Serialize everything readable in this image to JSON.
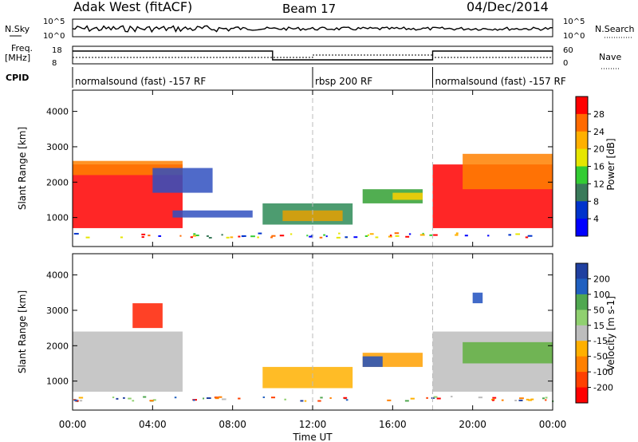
{
  "header": {
    "site": "Adak West (fitACF)",
    "beam": "Beam 17",
    "date": "04/Dec/2014"
  },
  "status_panel": {
    "nsky_label": "N.Sky",
    "nsky_ticks": [
      "10^5",
      "10^0"
    ],
    "nsearch_label": "N.Search",
    "nsearch_ticks": [
      "10^5",
      "10^0"
    ],
    "freq_label_1": "Freq.",
    "freq_label_2": "[MHz]",
    "freq_ticks": [
      "18",
      "8"
    ],
    "nave_label": "Nave",
    "nave_ticks": [
      "60",
      "0"
    ],
    "cpid_label": "CPID",
    "cpid_segments": [
      {
        "label": "normalsound (fast) -157 RF",
        "start_hour": 0,
        "end_hour": 12
      },
      {
        "label": "rbsp 200 RF",
        "start_hour": 12,
        "end_hour": 18
      },
      {
        "label": "normalsound (fast) -157 RF",
        "start_hour": 18,
        "end_hour": 24
      }
    ]
  },
  "x_axis": {
    "label": "Time UT",
    "ticks": [
      "00:00",
      "04:00",
      "08:00",
      "12:00",
      "16:00",
      "20:00",
      "00:00"
    ]
  },
  "chart_data": [
    {
      "type": "heatmap",
      "panel": "power",
      "ylabel": "Slant Range [km]",
      "xlim_hours": [
        0,
        24
      ],
      "ylim_km": [
        180,
        4600
      ],
      "ytick_labels": [
        "1000",
        "2000",
        "3000",
        "4000"
      ],
      "colorbar_label": "Power [dB]",
      "colorbar_ticks": [
        "28",
        "24",
        "20",
        "16",
        "12",
        "8",
        "4"
      ],
      "colorbar_colors": [
        "#ff0000",
        "#ff6a00",
        "#ffb000",
        "#e6e600",
        "#33cc33",
        "#3a7a5a",
        "#0033cc",
        "#0000ff"
      ],
      "regions": [
        {
          "t0": 0.0,
          "t1": 5.5,
          "r0": 700,
          "r1": 2500,
          "color": "#ff0000"
        },
        {
          "t0": 0.0,
          "t1": 5.5,
          "r0": 2200,
          "r1": 2600,
          "color": "#ff8000"
        },
        {
          "t0": 4.0,
          "t1": 7.0,
          "r0": 1700,
          "r1": 2400,
          "color": "#3050c0"
        },
        {
          "t0": 5.0,
          "t1": 9.0,
          "r0": 1000,
          "r1": 1200,
          "color": "#3050c0"
        },
        {
          "t0": 9.5,
          "t1": 14.0,
          "r0": 800,
          "r1": 1400,
          "color": "#2e8b57"
        },
        {
          "t0": 10.5,
          "t1": 13.5,
          "r0": 900,
          "r1": 1200,
          "color": "#e6a000"
        },
        {
          "t0": 14.5,
          "t1": 17.5,
          "r0": 1400,
          "r1": 1800,
          "color": "#33a033"
        },
        {
          "t0": 16.0,
          "t1": 17.5,
          "r0": 1500,
          "r1": 1700,
          "color": "#ffd000"
        },
        {
          "t0": 18.0,
          "t1": 24.0,
          "r0": 700,
          "r1": 2500,
          "color": "#ff0000"
        },
        {
          "t0": 19.5,
          "t1": 24.0,
          "r0": 1800,
          "r1": 2800,
          "color": "#ff8000"
        }
      ]
    },
    {
      "type": "heatmap",
      "panel": "velocity",
      "ylabel": "Slant Range [km]",
      "xlim_hours": [
        0,
        24
      ],
      "ylim_km": [
        180,
        4600
      ],
      "ytick_labels": [
        "1000",
        "2000",
        "3000",
        "4000"
      ],
      "colorbar_label": "Velocity [m s-1]",
      "colorbar_ticks": [
        "200",
        "100",
        "50",
        "15",
        "-15",
        "-50",
        "-100",
        "-200"
      ],
      "colorbar_colors": [
        "#2040a0",
        "#2060c0",
        "#50a850",
        "#90d070",
        "#bdbdbd",
        "#ffb000",
        "#ff8000",
        "#ff4000",
        "#ff0000"
      ],
      "regions": [
        {
          "t0": 0.0,
          "t1": 5.5,
          "r0": 700,
          "r1": 2400,
          "color": "#bdbdbd"
        },
        {
          "t0": 3.0,
          "t1": 4.5,
          "r0": 2500,
          "r1": 3200,
          "color": "#ff2000"
        },
        {
          "t0": 9.5,
          "t1": 14.0,
          "r0": 800,
          "r1": 1400,
          "color": "#ffb000"
        },
        {
          "t0": 14.5,
          "t1": 17.5,
          "r0": 1400,
          "r1": 1800,
          "color": "#ffa000"
        },
        {
          "t0": 14.5,
          "t1": 15.5,
          "r0": 1400,
          "r1": 1700,
          "color": "#2050c0"
        },
        {
          "t0": 18.0,
          "t1": 24.0,
          "r0": 700,
          "r1": 2400,
          "color": "#bdbdbd"
        },
        {
          "t0": 19.5,
          "t1": 24.0,
          "r0": 1500,
          "r1": 2100,
          "color": "#60b040"
        },
        {
          "t0": 20.0,
          "t1": 20.5,
          "r0": 3200,
          "r1": 3500,
          "color": "#2050c0"
        }
      ]
    }
  ]
}
